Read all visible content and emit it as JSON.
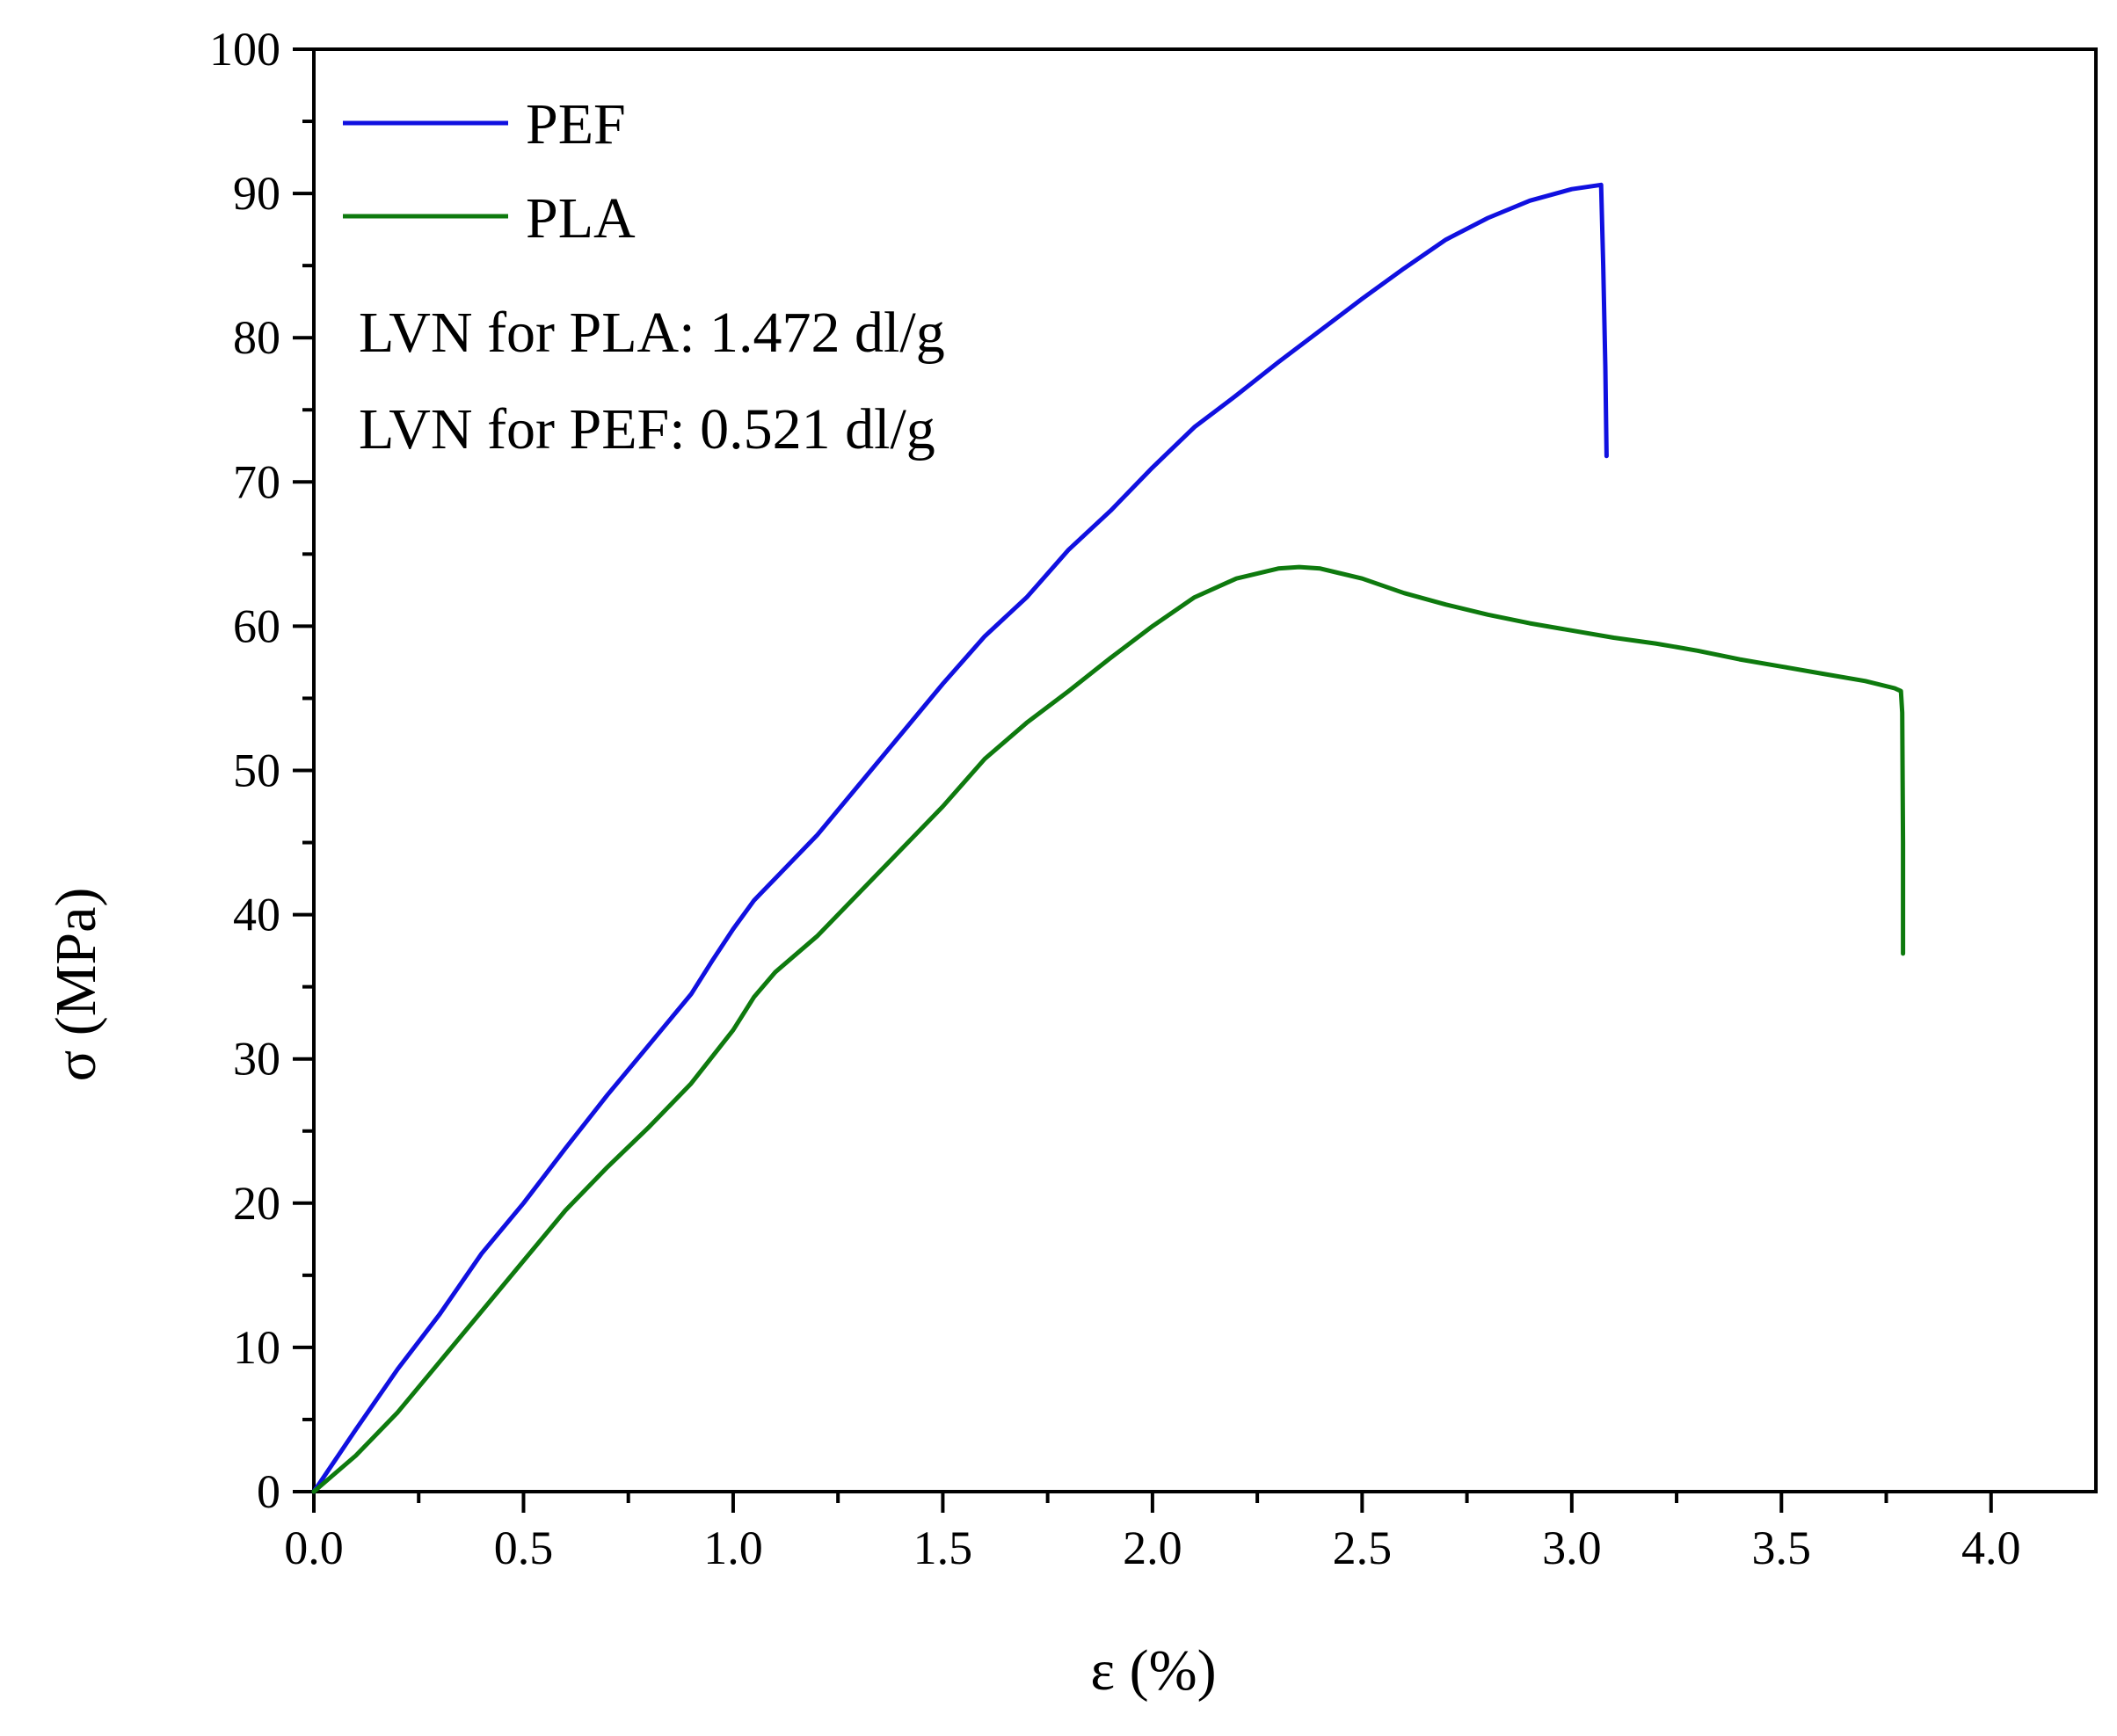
{
  "chart_data": {
    "type": "line",
    "title": "",
    "xlabel": "ε (%)",
    "ylabel": "σ (MPa)",
    "xlim": [
      0,
      4.25
    ],
    "ylim": [
      0,
      100
    ],
    "xticks": [
      0.0,
      0.5,
      1.0,
      1.5,
      2.0,
      2.5,
      3.0,
      3.5,
      4.0
    ],
    "xtick_labels": [
      "0.0",
      "0.5",
      "1.0",
      "1.5",
      "2.0",
      "2.5",
      "3.0",
      "3.5",
      "4.0"
    ],
    "yticks": [
      0,
      10,
      20,
      30,
      40,
      50,
      60,
      70,
      80,
      90,
      100
    ],
    "ytick_labels": [
      "0",
      "10",
      "20",
      "30",
      "40",
      "50",
      "60",
      "70",
      "80",
      "90",
      "100"
    ],
    "grid": false,
    "legend_position": "top-left",
    "annotations": [
      "LVN for PLA: 1.472 dl/g",
      "LVN for PEF: 0.521 dl/g"
    ],
    "series": [
      {
        "name": "PEF",
        "color": "#1010e0",
        "x": [
          0,
          0.1,
          0.2,
          0.3,
          0.4,
          0.5,
          0.6,
          0.7,
          0.8,
          0.9,
          0.95,
          1.0,
          1.05,
          1.1,
          1.2,
          1.3,
          1.4,
          1.5,
          1.6,
          1.7,
          1.8,
          1.9,
          2.0,
          2.1,
          2.2,
          2.3,
          2.4,
          2.5,
          2.6,
          2.7,
          2.8,
          2.9,
          3.0,
          3.07,
          3.075,
          3.08,
          3.083
        ],
        "y": [
          0,
          4.3,
          8.5,
          12.3,
          16.5,
          20.0,
          23.8,
          27.5,
          31.0,
          34.5,
          36.8,
          39.0,
          41.0,
          42.5,
          45.5,
          49.0,
          52.5,
          56.0,
          59.3,
          62.0,
          65.3,
          68.0,
          71.0,
          73.8,
          76.0,
          78.3,
          80.5,
          82.7,
          84.8,
          86.8,
          88.3,
          89.5,
          90.3,
          90.6,
          85.0,
          78.0,
          71.8
        ]
      },
      {
        "name": "PLA",
        "color": "#0e7a0e",
        "x": [
          0,
          0.1,
          0.2,
          0.3,
          0.4,
          0.5,
          0.6,
          0.7,
          0.8,
          0.9,
          1.0,
          1.05,
          1.1,
          1.2,
          1.3,
          1.4,
          1.5,
          1.6,
          1.7,
          1.8,
          1.9,
          2.0,
          2.1,
          2.2,
          2.3,
          2.35,
          2.4,
          2.5,
          2.6,
          2.7,
          2.8,
          2.9,
          3.0,
          3.1,
          3.2,
          3.3,
          3.4,
          3.5,
          3.6,
          3.7,
          3.77,
          3.785,
          3.788,
          3.79,
          3.79
        ],
        "y": [
          0,
          2.5,
          5.5,
          9.0,
          12.5,
          16.0,
          19.5,
          22.5,
          25.3,
          28.3,
          32.0,
          34.3,
          36.0,
          38.5,
          41.5,
          44.5,
          47.5,
          50.8,
          53.3,
          55.5,
          57.8,
          60.0,
          62.0,
          63.3,
          64.0,
          64.1,
          64.0,
          63.3,
          62.3,
          61.5,
          60.8,
          60.2,
          59.7,
          59.2,
          58.8,
          58.3,
          57.7,
          57.2,
          56.7,
          56.2,
          55.7,
          55.5,
          54.0,
          45.0,
          37.3
        ]
      }
    ]
  }
}
